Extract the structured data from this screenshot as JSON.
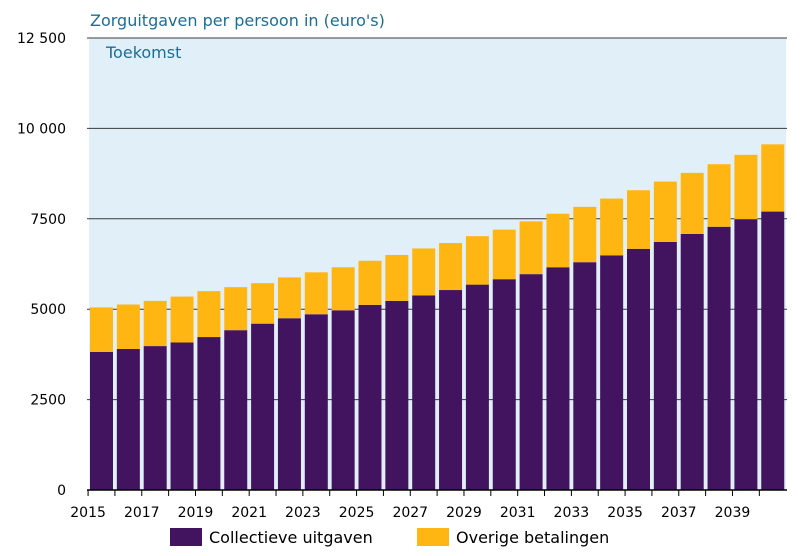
{
  "chart_data": {
    "type": "bar",
    "stacked": true,
    "title": "Zorguitgaven per persoon in (euro's)",
    "annotation": "Toekomst",
    "xlabel": "",
    "ylabel": "",
    "ylim": [
      0,
      12500
    ],
    "yticks": [
      {
        "value": 0,
        "label": "0"
      },
      {
        "value": 2500,
        "label": "2500"
      },
      {
        "value": 5000,
        "label": "5000"
      },
      {
        "value": 7500,
        "label": "7500"
      },
      {
        "value": 10000,
        "label": "10 000"
      },
      {
        "value": 12500,
        "label": "12 500"
      }
    ],
    "categories": [
      "2015",
      "2016",
      "2017",
      "2018",
      "2019",
      "2020",
      "2021",
      "2022",
      "2023",
      "2024",
      "2025",
      "2026",
      "2027",
      "2028",
      "2029",
      "2030",
      "2031",
      "2032",
      "2033",
      "2034",
      "2035",
      "2036",
      "2037",
      "2038",
      "2039",
      "2040"
    ],
    "xtick_labels": [
      "2015",
      "2017",
      "2019",
      "2021",
      "2023",
      "2025",
      "2027",
      "2029",
      "2031",
      "2033",
      "2035",
      "2037",
      "2039"
    ],
    "shaded_region": {
      "from": "2015",
      "to": "2040",
      "label": "Toekomst"
    },
    "series": [
      {
        "name": "Collectieve uitgaven",
        "color": "#42145f",
        "values": [
          3820,
          3900,
          3980,
          4080,
          4230,
          4420,
          4600,
          4750,
          4860,
          4970,
          5120,
          5230,
          5380,
          5530,
          5680,
          5830,
          5970,
          6160,
          6300,
          6490,
          6670,
          6860,
          7080,
          7280,
          7490,
          7700
        ]
      },
      {
        "name": "Overige betalingen",
        "color": "#ffb612",
        "values": [
          1230,
          1230,
          1250,
          1270,
          1270,
          1190,
          1120,
          1130,
          1160,
          1190,
          1220,
          1270,
          1300,
          1300,
          1340,
          1370,
          1460,
          1480,
          1530,
          1570,
          1620,
          1670,
          1690,
          1730,
          1780,
          1860
        ]
      }
    ]
  }
}
